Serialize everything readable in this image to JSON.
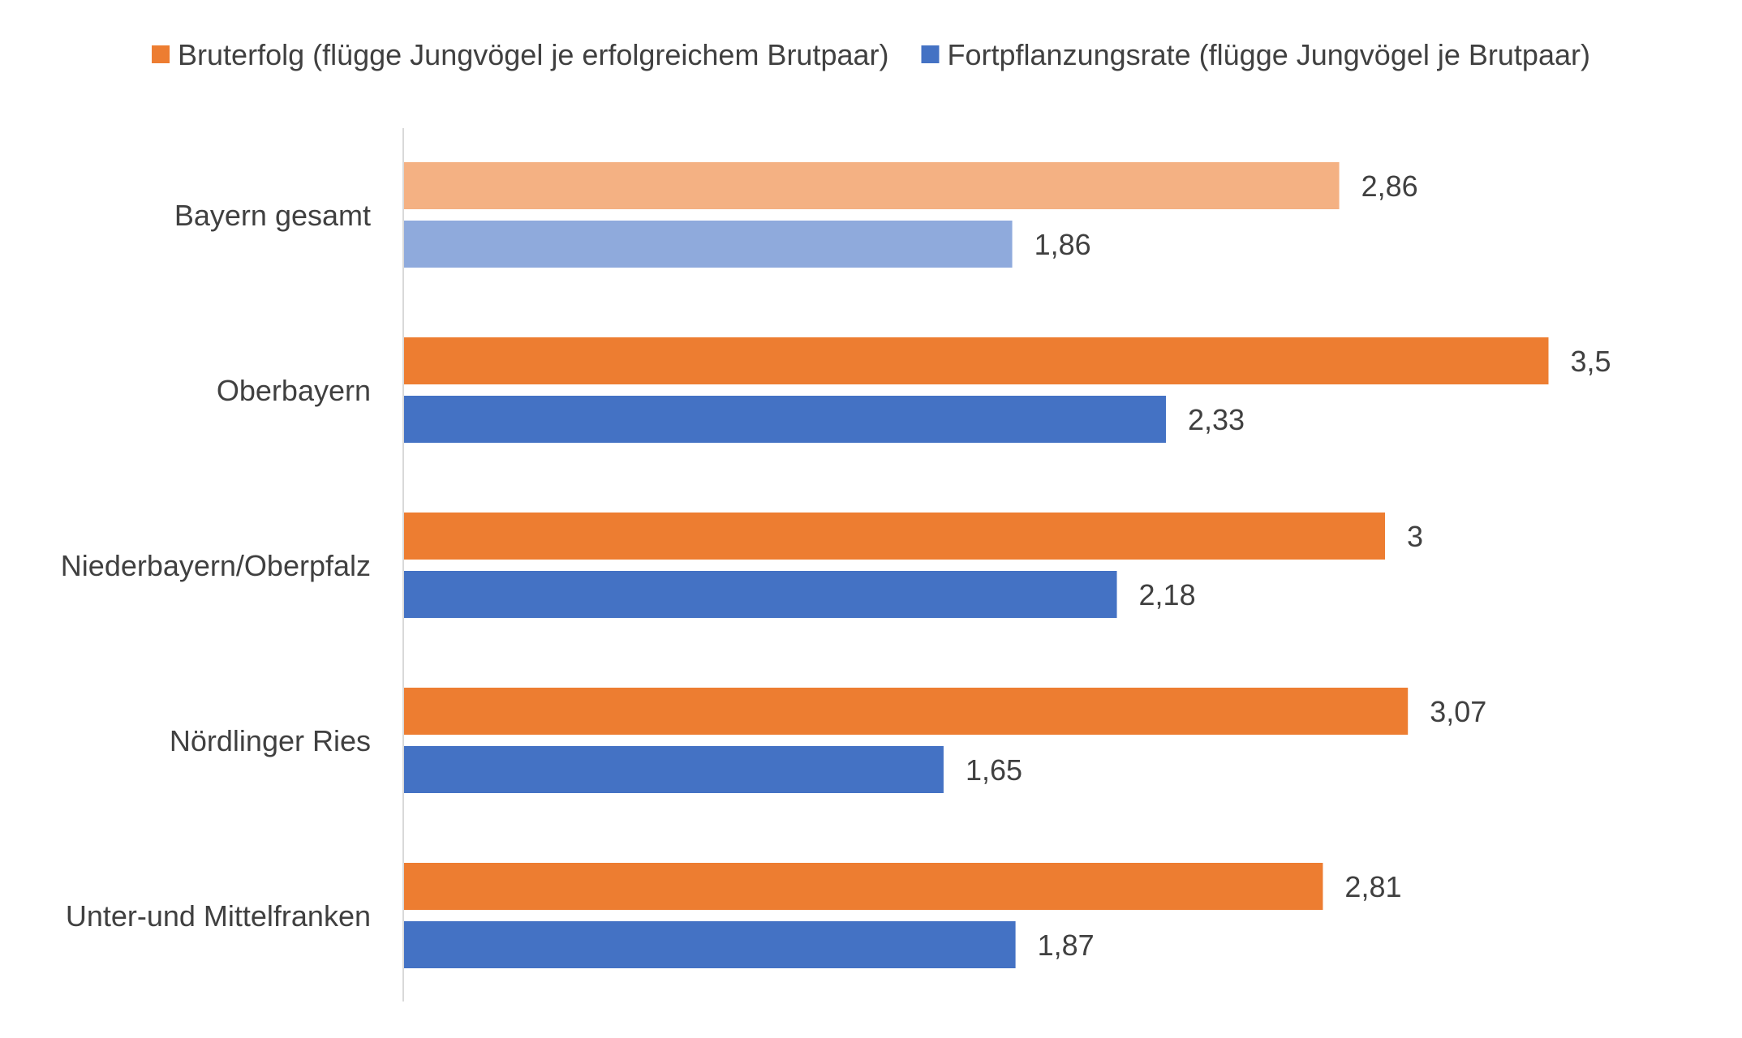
{
  "chart_data": {
    "type": "bar",
    "orientation": "horizontal",
    "title": "",
    "xlabel": "",
    "ylabel": "",
    "categories": [
      "Bayern gesamt",
      "Oberbayern",
      "Niederbayern/Oberpfalz",
      "Nördlinger Ries",
      "Unter-und Mittelfranken"
    ],
    "series": [
      {
        "name": "Bruterfolg (flügge Jungvögel je erfolgreichem Brutpaar)",
        "color": "#ED7D31",
        "highlight_color": "#F4B183",
        "values": [
          2.86,
          3.5,
          3,
          3.07,
          2.81
        ],
        "labels": [
          "2,86",
          "3,5",
          "3",
          "3,07",
          "2,81"
        ]
      },
      {
        "name": "Fortpflanzungsrate (flügge Jungvögel je Brutpaar)",
        "color": "#4472C4",
        "highlight_color": "#8FAADC",
        "values": [
          1.86,
          2.33,
          2.18,
          1.65,
          1.87
        ],
        "labels": [
          "1,86",
          "2,33",
          "2,18",
          "1,65",
          "1,87"
        ]
      }
    ],
    "highlighted_category_index": 0,
    "xlim": [
      0,
      3.5
    ],
    "grid": false,
    "legend_position": "top",
    "axis_color": "#D9D9D9",
    "text_color": "#404040"
  }
}
